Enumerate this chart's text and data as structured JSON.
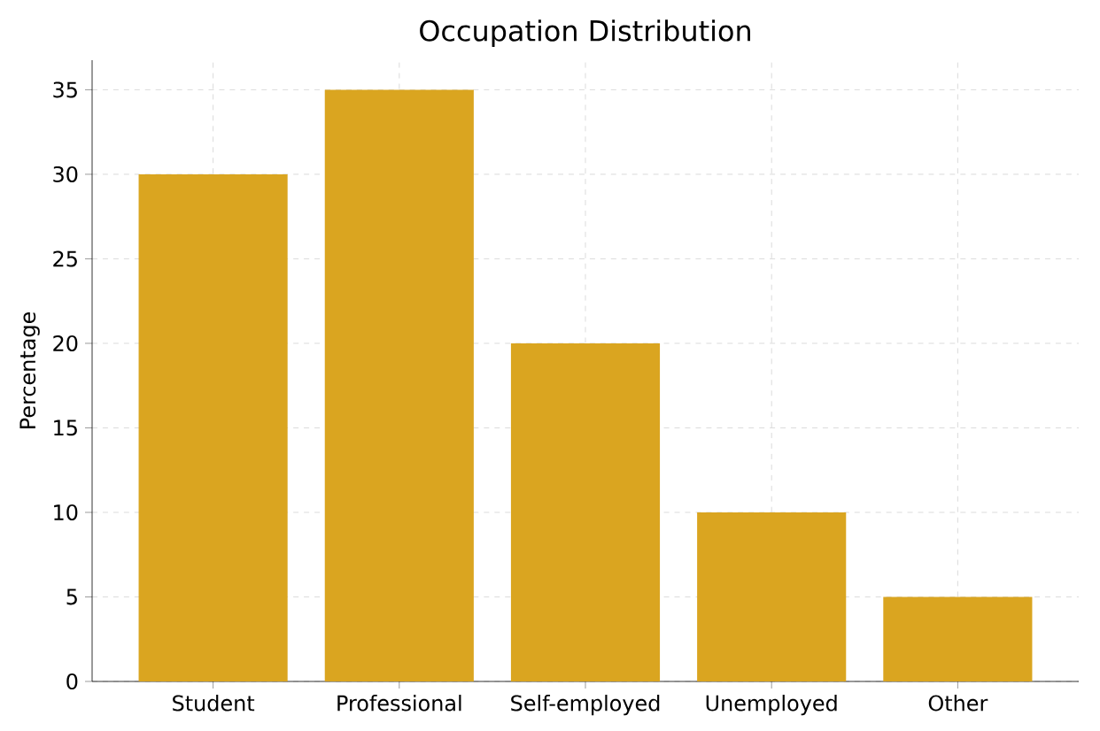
{
  "chart_data": {
    "type": "bar",
    "title": "Occupation Distribution",
    "ylabel": "Percentage",
    "categories": [
      "Student",
      "Professional",
      "Self-employed",
      "Unemployed",
      "Other"
    ],
    "values": [
      30,
      35,
      20,
      10,
      5
    ],
    "color": "#daa520",
    "ylim": [
      0,
      36.75
    ],
    "yticks": [
      0,
      5,
      10,
      15,
      20,
      25,
      30,
      35
    ],
    "grid": true
  }
}
